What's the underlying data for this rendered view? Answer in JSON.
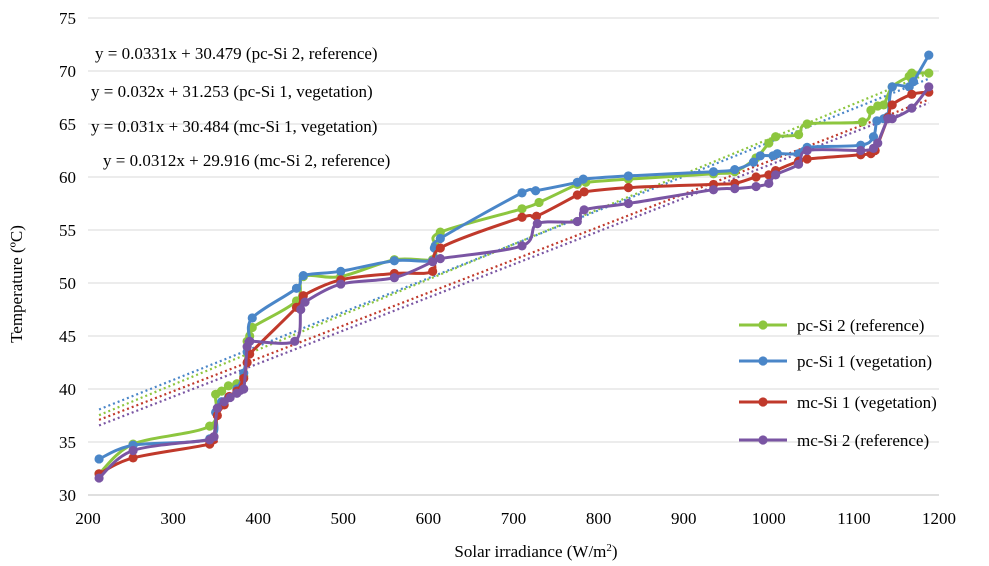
{
  "chart_data": {
    "type": "line",
    "xlabel": "Solar irradiance (W/m",
    "xlabel_sup": "2",
    "xlabel_end": ")",
    "ylabel": "Temperature (ºC)",
    "xlim": [
      200,
      1200
    ],
    "ylim": [
      30,
      75
    ],
    "x_ticks": [
      "200",
      "300",
      "400",
      "500",
      "600",
      "700",
      "800",
      "900",
      "1000",
      "1100",
      "1200"
    ],
    "y_ticks": [
      "30",
      "35",
      "40",
      "45",
      "50",
      "55",
      "60",
      "65",
      "70",
      "75"
    ],
    "grid": "horizontal",
    "legend_position": "right",
    "equations": [
      "y = 0.0331x + 30.479 (pc-Si 2, reference)",
      "y = 0.032x + 31.253 (pc-Si 1, vegetation)",
      "y = 0.031x + 30.484 (mc-Si 1, vegetation)",
      "y = 0.0312x + 29.916 (mc-Si 2, reference)"
    ],
    "series": [
      {
        "name": "pc-Si 2 (reference)",
        "color": "#8dc63f",
        "trend": {
          "slope": 0.0331,
          "intercept": 30.479
        },
        "x": [
          213,
          253,
          343,
          350,
          357,
          365,
          375,
          383,
          387,
          390,
          393,
          445,
          453,
          497,
          560,
          605,
          608,
          614,
          710,
          730,
          775,
          785,
          835,
          935,
          960,
          985,
          1000,
          1008,
          1035,
          1045,
          1110,
          1120,
          1128,
          1135,
          1145,
          1165,
          1168,
          1188
        ],
        "y": [
          32.0,
          34.8,
          36.5,
          39.5,
          39.8,
          40.3,
          40.5,
          41.2,
          44.5,
          45.0,
          45.8,
          48.3,
          50.6,
          50.6,
          52.2,
          52.2,
          53.5,
          54.8,
          57.0,
          57.6,
          59.3,
          59.5,
          59.8,
          60.3,
          60.5,
          61.8,
          63.2,
          63.8,
          64.0,
          65.0,
          65.2,
          66.3,
          66.7,
          66.8,
          68.5,
          69.5,
          69.8,
          69.8
        ]
      },
      {
        "name": "pc-Si 1 (vegetation)",
        "color": "#4a86c8",
        "trend": {
          "slope": 0.032,
          "intercept": 31.253
        },
        "x": [
          213,
          253,
          343,
          350,
          357,
          365,
          375,
          383,
          387,
          390,
          393,
          445,
          453,
          497,
          560,
          605,
          607,
          614,
          710,
          726,
          775,
          782,
          835,
          935,
          960,
          982,
          990,
          1005,
          1010,
          1035,
          1045,
          1108,
          1123,
          1127,
          1135,
          1140,
          1145,
          1165,
          1170,
          1188
        ],
        "y": [
          33.4,
          34.7,
          35.3,
          37.8,
          38.8,
          39.2,
          40.0,
          41.5,
          43.5,
          44.5,
          46.7,
          49.5,
          50.7,
          51.1,
          52.1,
          52.1,
          53.3,
          54.2,
          58.5,
          58.7,
          59.5,
          59.8,
          60.1,
          60.5,
          60.7,
          61.4,
          62.0,
          62.0,
          62.2,
          62.2,
          62.8,
          63.0,
          63.8,
          65.3,
          65.5,
          65.7,
          68.5,
          68.5,
          69.0,
          71.5
        ]
      },
      {
        "name": "mc-Si 1 (vegetation)",
        "color": "#c0392b",
        "trend": {
          "slope": 0.031,
          "intercept": 30.484
        },
        "x": [
          213,
          253,
          343,
          348,
          352,
          360,
          366,
          375,
          383,
          387,
          390,
          445,
          453,
          497,
          560,
          605,
          614,
          710,
          727,
          775,
          783,
          835,
          935,
          960,
          985,
          1000,
          1008,
          1035,
          1045,
          1108,
          1120,
          1125,
          1140,
          1145,
          1168,
          1188
        ],
        "y": [
          32.0,
          33.5,
          34.8,
          35.5,
          37.5,
          38.5,
          39.3,
          39.8,
          41.0,
          42.5,
          43.3,
          47.7,
          48.8,
          50.3,
          50.9,
          51.1,
          53.3,
          56.2,
          56.3,
          58.3,
          58.6,
          59.0,
          59.3,
          59.4,
          60.0,
          60.2,
          60.6,
          61.5,
          61.7,
          62.1,
          62.2,
          62.5,
          65.6,
          66.8,
          67.8,
          68.0
        ]
      },
      {
        "name": "mc-Si 2 (reference)",
        "color": "#7a55a3",
        "trend": {
          "slope": 0.0312,
          "intercept": 29.916
        },
        "x": [
          213,
          253,
          343,
          348,
          352,
          360,
          367,
          375,
          383,
          387,
          390,
          443,
          450,
          455,
          497,
          560,
          605,
          614,
          710,
          728,
          775,
          783,
          835,
          935,
          960,
          985,
          1000,
          1008,
          1035,
          1045,
          1108,
          1123,
          1128,
          1140,
          1145,
          1168,
          1188
        ],
        "y": [
          31.6,
          34.2,
          35.2,
          35.5,
          38.2,
          38.8,
          39.2,
          39.6,
          40.0,
          44.0,
          44.5,
          44.5,
          47.5,
          48.2,
          49.9,
          50.5,
          52.0,
          52.3,
          53.5,
          55.6,
          55.8,
          56.9,
          57.5,
          58.8,
          58.9,
          59.1,
          59.4,
          60.2,
          61.2,
          62.5,
          62.5,
          62.7,
          63.2,
          65.5,
          65.5,
          66.5,
          68.5
        ]
      }
    ]
  }
}
